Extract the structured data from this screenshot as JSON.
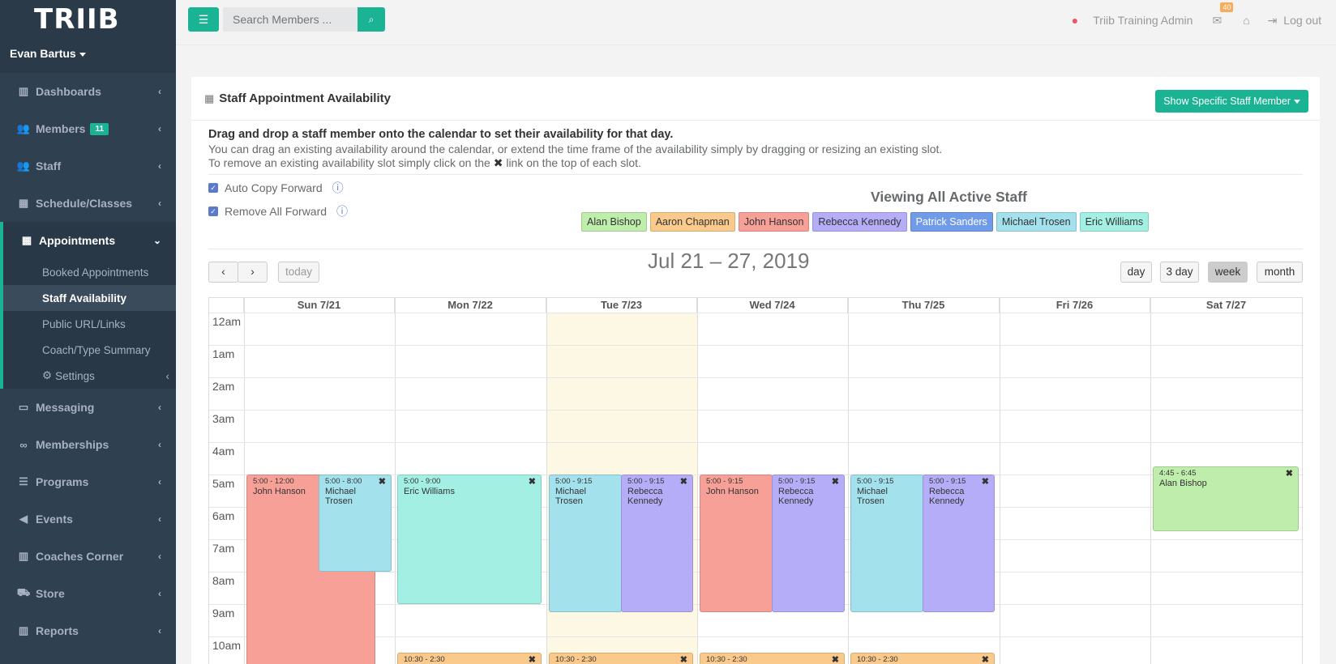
{
  "sidebar": {
    "logo": "TRIIB",
    "user": "Evan Bartus",
    "items": [
      {
        "label": "Dashboards",
        "icon": "bar-chart-icon"
      },
      {
        "label": "Members",
        "icon": "users-icon",
        "badge": "11"
      },
      {
        "label": "Staff",
        "icon": "users-icon"
      },
      {
        "label": "Schedule/Classes",
        "icon": "calendar-icon"
      },
      {
        "label": "Appointments",
        "icon": "calendar-icon"
      },
      {
        "label": "Messaging",
        "icon": "inbox-icon"
      },
      {
        "label": "Memberships",
        "icon": "handshake-icon"
      },
      {
        "label": "Programs",
        "icon": "list-icon"
      },
      {
        "label": "Events",
        "icon": "bullhorn-icon"
      },
      {
        "label": "Coaches Corner",
        "icon": "bar-chart-icon"
      },
      {
        "label": "Store",
        "icon": "cart-icon"
      },
      {
        "label": "Reports",
        "icon": "bar-chart-icon"
      }
    ],
    "sub_items": [
      "Booked Appointments",
      "Staff Availability",
      "Public URL/Links",
      "Coach/Type Summary",
      "Settings"
    ]
  },
  "topbar": {
    "search_placeholder": "Search Members ...",
    "admin": "Triib Training Admin",
    "mail_count": "40",
    "logout": "Log out"
  },
  "panel": {
    "title": "Staff Appointment Availability",
    "show_button": "Show Specific Staff Member",
    "intro_bold": "Drag and drop a staff member onto the calendar to set their availability for that day.",
    "intro_1": "You can drag an existing availability around the calendar, or extend the time frame of the availability simply by dragging or resizing an existing slot.",
    "intro_2a": "To remove an existing availability slot simply click on the",
    "intro_2b": "link on the top of each slot.",
    "auto_copy": "Auto Copy Forward",
    "remove_all": "Remove All Forward",
    "viewing": "Viewing All Active Staff"
  },
  "staff": [
    {
      "name": "Alan Bishop",
      "color": "#bfeeac"
    },
    {
      "name": "Aaron Chapman",
      "color": "#fac98c"
    },
    {
      "name": "John Hanson",
      "color": "#f7a098"
    },
    {
      "name": "Rebecca Kennedy",
      "color": "#b6adf8"
    },
    {
      "name": "Patrick Sanders",
      "color": "#6f9be8"
    },
    {
      "name": "Michael Trosen",
      "color": "#a3e1ec"
    },
    {
      "name": "Eric Williams",
      "color": "#a4efe4"
    }
  ],
  "calendar": {
    "title": "Jul 21 – 27, 2019",
    "today": "today",
    "views": [
      "day",
      "3 day",
      "week",
      "month"
    ],
    "active_view": "week",
    "days": [
      "Sun 7/21",
      "Mon 7/22",
      "Tue 7/23",
      "Wed 7/24",
      "Thu 7/25",
      "Fri 7/26",
      "Sat 7/27"
    ],
    "hours": [
      "12am",
      "1am",
      "2am",
      "3am",
      "4am",
      "5am",
      "6am",
      "7am",
      "8am",
      "9am",
      "10am"
    ],
    "events": [
      {
        "time": "5:00 - 12:00",
        "name": "John Hanson"
      },
      {
        "time": "5:00 - 8:00",
        "name": "Michael Trosen"
      },
      {
        "time": "5:00 - 9:00",
        "name": "Eric Williams"
      },
      {
        "time": "5:00 - 9:15",
        "name": "Michael Trosen"
      },
      {
        "time": "5:00 - 9:15",
        "name": "Rebecca Kennedy"
      },
      {
        "time": "5:00 - 9:15",
        "name": "John Hanson"
      },
      {
        "time": "5:00 - 9:15",
        "name": "Rebecca Kennedy"
      },
      {
        "time": "5:00 - 9:15",
        "name": "Michael Trosen"
      },
      {
        "time": "5:00 - 9:15",
        "name": "Rebecca Kennedy"
      },
      {
        "time": "4:45 - 6:45",
        "name": "Alan Bishop"
      },
      {
        "time": "10:30 - 2:30",
        "name": ""
      },
      {
        "time": "10:30 - 2:30",
        "name": ""
      },
      {
        "time": "10:30 - 2:30",
        "name": ""
      },
      {
        "time": "10:30 - 2:30",
        "name": ""
      }
    ]
  }
}
